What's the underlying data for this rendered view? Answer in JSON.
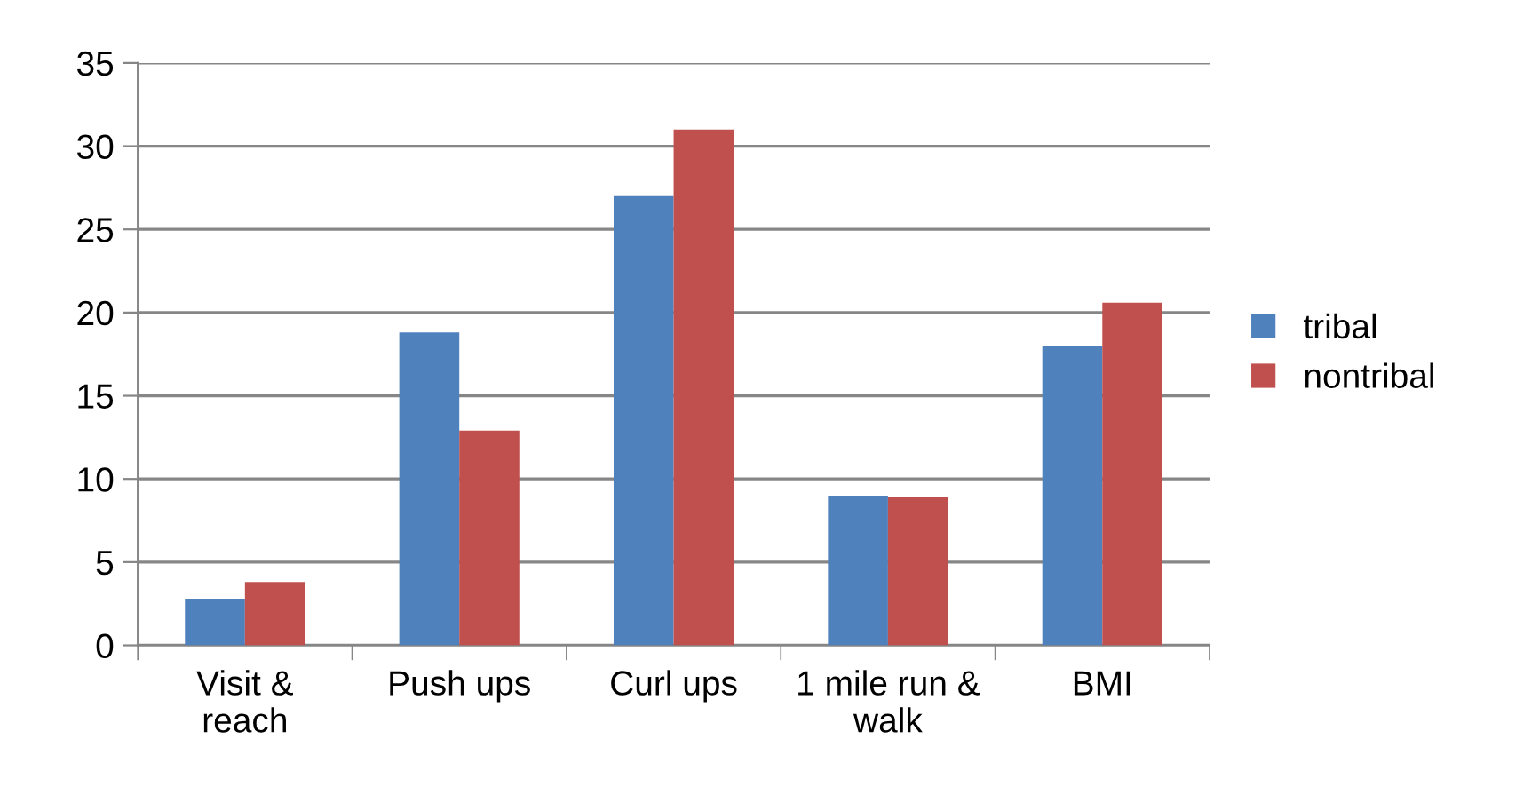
{
  "chart_data": {
    "type": "bar",
    "categories": [
      "Visit & reach",
      "Push ups",
      "Curl ups",
      "1 mile run & walk",
      "BMI"
    ],
    "series": [
      {
        "name": "tribal",
        "color": "#4f81bd",
        "values": [
          2.8,
          18.8,
          27.0,
          9.0,
          18.0
        ]
      },
      {
        "name": "nontribal",
        "color": "#c0504d",
        "values": [
          3.8,
          12.9,
          31.0,
          8.9,
          20.6
        ]
      }
    ],
    "ylim": [
      0,
      35
    ],
    "yticks": [
      0,
      5,
      10,
      15,
      20,
      25,
      30,
      35
    ],
    "grid": "y",
    "legend": "right"
  }
}
